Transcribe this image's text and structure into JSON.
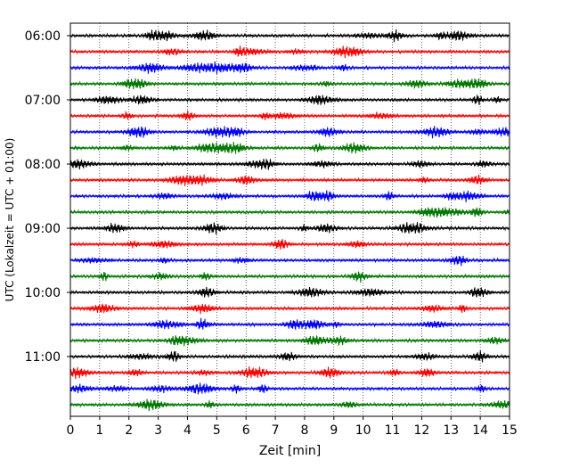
{
  "chart_data": {
    "type": "line",
    "title": "",
    "xlabel": "Zeit  [min]",
    "ylabel": "UTC (Lokalzeit = UTC + 01:00)",
    "xlim": [
      0,
      15
    ],
    "x_ticks": [
      "0",
      "1",
      "2",
      "3",
      "4",
      "5",
      "6",
      "7",
      "8",
      "9",
      "10",
      "11",
      "12",
      "13",
      "14",
      "15"
    ],
    "y_ticks": [
      "06:00",
      "07:00",
      "08:00",
      "09:00",
      "10:00",
      "11:00"
    ],
    "grid": "vertical dotted lines at each minute",
    "trace_interval_min": 15,
    "trace_minutes": 15,
    "trace_colors": [
      "#000000",
      "#ff0000",
      "#0000ff",
      "#007700"
    ],
    "traces": [
      {
        "start": "06:00",
        "color": "#000000"
      },
      {
        "start": "06:15",
        "color": "#ff0000"
      },
      {
        "start": "06:30",
        "color": "#0000ff"
      },
      {
        "start": "06:45",
        "color": "#007700"
      },
      {
        "start": "07:00",
        "color": "#000000"
      },
      {
        "start": "07:15",
        "color": "#ff0000"
      },
      {
        "start": "07:30",
        "color": "#0000ff"
      },
      {
        "start": "07:45",
        "color": "#007700"
      },
      {
        "start": "08:00",
        "color": "#000000"
      },
      {
        "start": "08:15",
        "color": "#ff0000"
      },
      {
        "start": "08:30",
        "color": "#0000ff"
      },
      {
        "start": "08:45",
        "color": "#007700"
      },
      {
        "start": "09:00",
        "color": "#000000"
      },
      {
        "start": "09:15",
        "color": "#ff0000"
      },
      {
        "start": "09:30",
        "color": "#0000ff"
      },
      {
        "start": "09:45",
        "color": "#007700"
      },
      {
        "start": "10:00",
        "color": "#000000"
      },
      {
        "start": "10:15",
        "color": "#ff0000"
      },
      {
        "start": "10:30",
        "color": "#0000ff"
      },
      {
        "start": "10:45",
        "color": "#007700"
      },
      {
        "start": "11:00",
        "color": "#000000"
      },
      {
        "start": "11:15",
        "color": "#ff0000"
      },
      {
        "start": "11:30",
        "color": "#0000ff"
      },
      {
        "start": "11:45",
        "color": "#007700"
      }
    ]
  }
}
